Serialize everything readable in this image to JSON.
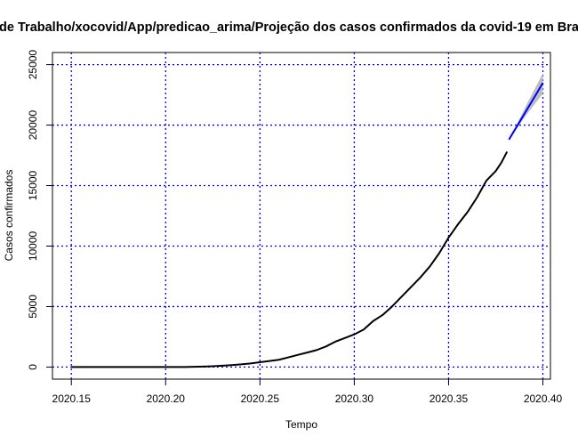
{
  "chart_data": {
    "type": "line",
    "title": "de Trabalho/xocovid/App/predicao_arima/Projeção dos casos confirmados da covid-19 em Bra",
    "xlabel": "Tempo",
    "ylabel": "Casos confirmados",
    "xlim": [
      2020.14,
      2020.404
    ],
    "ylim": [
      -1000,
      26000
    ],
    "x_ticks": [
      2020.15,
      2020.2,
      2020.25,
      2020.3,
      2020.35,
      2020.4
    ],
    "x_tick_labels": [
      "2020.15",
      "2020.20",
      "2020.25",
      "2020.30",
      "2020.35",
      "2020.40"
    ],
    "y_ticks": [
      0,
      5000,
      10000,
      15000,
      20000,
      25000
    ],
    "y_tick_labels": [
      "0",
      "5000",
      "10000",
      "15000",
      "20000",
      "25000"
    ],
    "grid": true,
    "grid_color": "#0000ff",
    "series": [
      {
        "role": "observed",
        "color": "#000000",
        "x": [
          2020.15,
          2020.16,
          2020.17,
          2020.18,
          2020.19,
          2020.2,
          2020.21,
          2020.215,
          2020.22,
          2020.225,
          2020.23,
          2020.235,
          2020.24,
          2020.245,
          2020.25,
          2020.255,
          2020.26,
          2020.265,
          2020.27,
          2020.275,
          2020.28,
          2020.285,
          2020.29,
          2020.295,
          2020.3,
          2020.305,
          2020.31,
          2020.315,
          2020.32,
          2020.325,
          2020.33,
          2020.335,
          2020.34,
          2020.345,
          2020.35,
          2020.355,
          2020.36,
          2020.365,
          2020.37,
          2020.375,
          2020.378,
          2020.381
        ],
        "values": [
          0,
          0,
          0,
          0,
          0,
          2,
          4,
          20,
          40,
          70,
          110,
          160,
          220,
          300,
          400,
          500,
          600,
          800,
          1000,
          1200,
          1400,
          1700,
          2100,
          2400,
          2700,
          3100,
          3800,
          4300,
          5000,
          5800,
          6600,
          7400,
          8300,
          9400,
          10700,
          11800,
          12800,
          14000,
          15400,
          16200,
          16900,
          17800
        ]
      },
      {
        "role": "forecast",
        "color": "#0000ff",
        "band_color": "#bebebe",
        "x": [
          2020.382,
          2020.387,
          2020.392,
          2020.397,
          2020.4
        ],
        "values": [
          18800,
          20100,
          21400,
          22700,
          23500
        ],
        "lower": [
          18800,
          19900,
          21000,
          22000,
          22600
        ],
        "upper": [
          18800,
          20300,
          21900,
          23400,
          24300
        ]
      }
    ]
  }
}
